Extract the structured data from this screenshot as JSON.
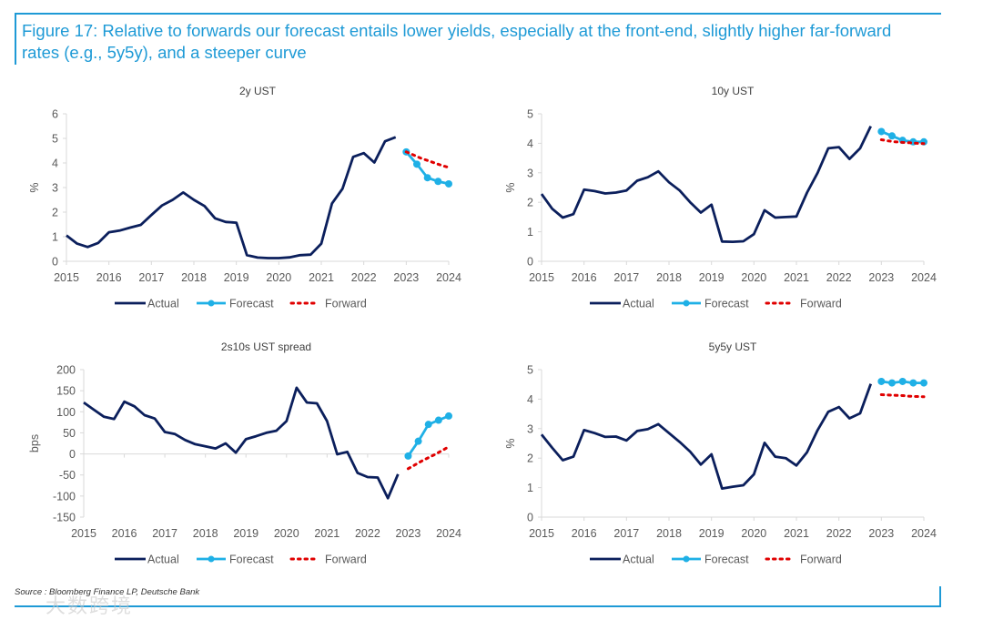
{
  "figure": {
    "title": "Figure 17: Relative to forwards our forecast entails lower yields, especially at the front-end, slightly higher far-forward rates (e.g., 5y5y), and a steeper curve",
    "source": "Source : Bloomberg Finance LP, Deutsche Bank",
    "watermark": "大数跨境"
  },
  "colors": {
    "actual": "#0b1f5c",
    "forecast": "#1fb0e6",
    "forward": "#e00000",
    "frame": "#1e9ad6",
    "text": "#595959"
  },
  "chart_data": [
    {
      "type": "line",
      "title": "2y UST",
      "ylabel": "%",
      "xlabel": "",
      "xlim": [
        2015,
        2024
      ],
      "ylim": [
        0,
        6
      ],
      "yticks": [
        0,
        1,
        2,
        3,
        4,
        5,
        6
      ],
      "xticks": [
        2015,
        2016,
        2017,
        2018,
        2019,
        2020,
        2021,
        2022,
        2023,
        2024
      ],
      "legend": [
        "Actual",
        "Forecast",
        "Forward"
      ],
      "legend_position": "bottom",
      "series": [
        {
          "name": "Actual",
          "start": 2015,
          "step": 0.25,
          "values": [
            1.05,
            0.72,
            0.58,
            0.75,
            1.18,
            1.25,
            1.37,
            1.48,
            1.88,
            2.27,
            2.5,
            2.8,
            2.5,
            2.25,
            1.75,
            1.6,
            1.57,
            0.25,
            0.15,
            0.13,
            0.13,
            0.16,
            0.25,
            0.27,
            0.72,
            2.35,
            2.95,
            4.25,
            4.4,
            4.02,
            4.88,
            5.05
          ]
        },
        {
          "name": "Forecast",
          "start": 2023,
          "step": 0.25,
          "values": [
            4.45,
            3.95,
            3.4,
            3.25,
            3.15
          ]
        },
        {
          "name": "Forward",
          "start": 2023,
          "step": 0.1667,
          "values": [
            4.45,
            4.33,
            4.2,
            4.1,
            4.0,
            3.9,
            3.82
          ]
        }
      ]
    },
    {
      "type": "line",
      "title": "10y UST",
      "ylabel": "%",
      "xlabel": "",
      "xlim": [
        2015,
        2024
      ],
      "ylim": [
        0,
        5
      ],
      "yticks": [
        0,
        1,
        2,
        3,
        4,
        5
      ],
      "xticks": [
        2015,
        2016,
        2017,
        2018,
        2019,
        2020,
        2021,
        2022,
        2023,
        2024
      ],
      "legend": [
        "Actual",
        "Forecast",
        "Forward"
      ],
      "legend_position": "bottom",
      "series": [
        {
          "name": "Actual",
          "start": 2015,
          "step": 0.25,
          "values": [
            2.28,
            1.78,
            1.48,
            1.6,
            2.43,
            2.38,
            2.3,
            2.33,
            2.4,
            2.73,
            2.85,
            3.05,
            2.68,
            2.4,
            2.0,
            1.65,
            1.92,
            0.67,
            0.66,
            0.68,
            0.92,
            1.73,
            1.48,
            1.5,
            1.52,
            2.33,
            3.0,
            3.83,
            3.87,
            3.47,
            3.83,
            4.58
          ]
        },
        {
          "name": "Forecast",
          "start": 2023,
          "step": 0.25,
          "values": [
            4.4,
            4.25,
            4.1,
            4.05,
            4.05
          ]
        },
        {
          "name": "Forward",
          "start": 2023,
          "step": 0.1667,
          "values": [
            4.12,
            4.08,
            4.05,
            4.03,
            4.02,
            4.0,
            3.99
          ]
        }
      ]
    },
    {
      "type": "line",
      "title": "2s10s UST spread",
      "ylabel": "bps",
      "xlabel": "",
      "xlim": [
        2015,
        2024
      ],
      "ylim": [
        -150,
        200
      ],
      "yticks": [
        -150,
        -100,
        -50,
        0,
        50,
        100,
        150,
        200
      ],
      "xticks": [
        2015,
        2016,
        2017,
        2018,
        2019,
        2020,
        2021,
        2022,
        2023,
        2024
      ],
      "legend": [
        "Actual",
        "Forecast",
        "Forward"
      ],
      "legend_position": "bottom",
      "series": [
        {
          "name": "Actual",
          "start": 2015,
          "step": 0.25,
          "values": [
            122,
            105,
            88,
            83,
            124,
            113,
            92,
            84,
            52,
            47,
            33,
            23,
            18,
            13,
            25,
            3,
            35,
            42,
            50,
            55,
            78,
            157,
            122,
            120,
            78,
            -1,
            5,
            -45,
            -55,
            -56,
            -105,
            -48
          ]
        },
        {
          "name": "Forecast",
          "start": 2023,
          "step": 0.25,
          "values": [
            -5,
            30,
            70,
            80,
            90
          ]
        },
        {
          "name": "Forward",
          "start": 2023,
          "step": 0.1667,
          "values": [
            -35,
            -26,
            -17,
            -9,
            -1,
            8,
            17
          ]
        }
      ]
    },
    {
      "type": "line",
      "title": "5y5y UST",
      "ylabel": "%",
      "xlabel": "",
      "xlim": [
        2015,
        2024
      ],
      "ylim": [
        0,
        5
      ],
      "yticks": [
        0,
        1,
        2,
        3,
        4,
        5
      ],
      "xticks": [
        2015,
        2016,
        2017,
        2018,
        2019,
        2020,
        2021,
        2022,
        2023,
        2024
      ],
      "legend": [
        "Actual",
        "Forecast",
        "Forward"
      ],
      "legend_position": "bottom",
      "series": [
        {
          "name": "Actual",
          "start": 2015,
          "step": 0.25,
          "values": [
            2.8,
            2.35,
            1.93,
            2.05,
            2.95,
            2.85,
            2.72,
            2.73,
            2.6,
            2.92,
            2.98,
            3.15,
            2.85,
            2.55,
            2.22,
            1.78,
            2.13,
            0.97,
            1.03,
            1.08,
            1.45,
            2.52,
            2.05,
            2.0,
            1.75,
            2.2,
            2.95,
            3.57,
            3.73,
            3.35,
            3.52,
            4.52
          ]
        },
        {
          "name": "Forecast",
          "start": 2023,
          "step": 0.25,
          "values": [
            4.6,
            4.55,
            4.6,
            4.55,
            4.55
          ]
        },
        {
          "name": "Forward",
          "start": 2023,
          "step": 0.1667,
          "values": [
            4.15,
            4.14,
            4.13,
            4.12,
            4.1,
            4.09,
            4.08
          ]
        }
      ]
    }
  ]
}
